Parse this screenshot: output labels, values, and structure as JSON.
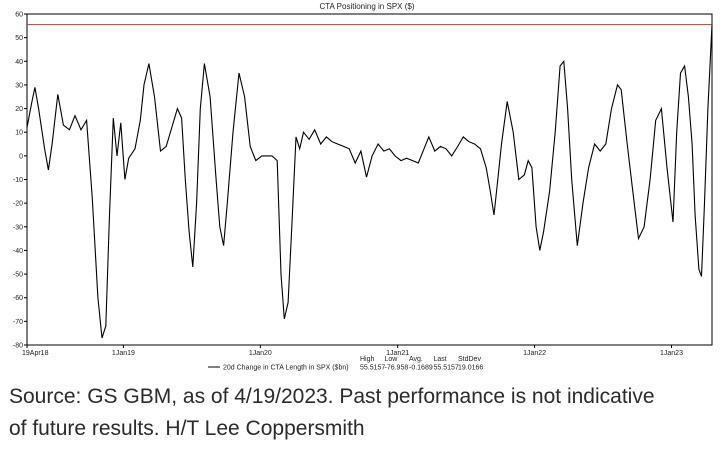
{
  "chart_data": {
    "type": "line",
    "title": "CTA Positioning in SPX ($)",
    "ylim": [
      -80,
      60
    ],
    "yticks": [
      60,
      50,
      40,
      30,
      20,
      10,
      0,
      -10,
      -20,
      -30,
      -40,
      -50,
      -60,
      -70,
      -80
    ],
    "xlim": [
      "2018-04-19",
      "2023-04-19"
    ],
    "xticks": [
      {
        "label": "19Apr18",
        "date": "2018-04-19"
      },
      {
        "label": "1Jan19",
        "date": "2019-01-01"
      },
      {
        "label": "1Jan20",
        "date": "2020-01-01"
      },
      {
        "label": "1Jan21",
        "date": "2021-01-01"
      },
      {
        "label": "1Jan22",
        "date": "2022-01-01"
      },
      {
        "label": "1Jan23",
        "date": "2023-01-01"
      }
    ],
    "reference_line": {
      "y": 55.5157,
      "color": "#c0392b"
    },
    "series": [
      {
        "name": "20d Change in CTA Length in SPX ($bn)",
        "color": "#000000",
        "points": [
          [
            "2018-04-19",
            12
          ],
          [
            "2018-05-01",
            22
          ],
          [
            "2018-05-10",
            29
          ],
          [
            "2018-05-20",
            20
          ],
          [
            "2018-06-05",
            3
          ],
          [
            "2018-06-15",
            -6
          ],
          [
            "2018-06-25",
            5
          ],
          [
            "2018-07-10",
            26
          ],
          [
            "2018-07-25",
            13
          ],
          [
            "2018-08-10",
            11
          ],
          [
            "2018-08-25",
            17
          ],
          [
            "2018-09-10",
            11
          ],
          [
            "2018-09-25",
            15
          ],
          [
            "2018-10-10",
            -18
          ],
          [
            "2018-10-25",
            -60
          ],
          [
            "2018-11-05",
            -77
          ],
          [
            "2018-11-15",
            -72
          ],
          [
            "2018-11-25",
            -25
          ],
          [
            "2018-12-05",
            16
          ],
          [
            "2018-12-15",
            0
          ],
          [
            "2018-12-25",
            14
          ],
          [
            "2019-01-05",
            -10
          ],
          [
            "2019-01-15",
            -1
          ],
          [
            "2019-02-01",
            3
          ],
          [
            "2019-02-15",
            15
          ],
          [
            "2019-02-25",
            30
          ],
          [
            "2019-03-10",
            39
          ],
          [
            "2019-03-25",
            25
          ],
          [
            "2019-04-10",
            2
          ],
          [
            "2019-04-25",
            4
          ],
          [
            "2019-05-10",
            12
          ],
          [
            "2019-05-25",
            20
          ],
          [
            "2019-06-05",
            16
          ],
          [
            "2019-06-15",
            -10
          ],
          [
            "2019-06-25",
            -32
          ],
          [
            "2019-07-05",
            -47
          ],
          [
            "2019-07-15",
            -20
          ],
          [
            "2019-07-25",
            20
          ],
          [
            "2019-08-05",
            39
          ],
          [
            "2019-08-20",
            25
          ],
          [
            "2019-09-05",
            -10
          ],
          [
            "2019-09-15",
            -30
          ],
          [
            "2019-09-25",
            -38
          ],
          [
            "2019-10-05",
            -20
          ],
          [
            "2019-10-20",
            10
          ],
          [
            "2019-11-05",
            35
          ],
          [
            "2019-11-20",
            25
          ],
          [
            "2019-12-05",
            4
          ],
          [
            "2019-12-20",
            -2
          ],
          [
            "2020-01-05",
            0
          ],
          [
            "2020-01-20",
            0
          ],
          [
            "2020-02-01",
            0
          ],
          [
            "2020-02-15",
            -2
          ],
          [
            "2020-02-25",
            -50
          ],
          [
            "2020-03-05",
            -69
          ],
          [
            "2020-03-15",
            -62
          ],
          [
            "2020-03-25",
            -30
          ],
          [
            "2020-04-05",
            8
          ],
          [
            "2020-04-15",
            3
          ],
          [
            "2020-04-25",
            10
          ],
          [
            "2020-05-10",
            7
          ],
          [
            "2020-05-25",
            11
          ],
          [
            "2020-06-10",
            5
          ],
          [
            "2020-06-25",
            8
          ],
          [
            "2020-07-10",
            6
          ],
          [
            "2020-07-25",
            5
          ],
          [
            "2020-08-10",
            4
          ],
          [
            "2020-08-25",
            3
          ],
          [
            "2020-09-10",
            -3
          ],
          [
            "2020-09-25",
            2
          ],
          [
            "2020-10-10",
            -9
          ],
          [
            "2020-10-25",
            0
          ],
          [
            "2020-11-10",
            5
          ],
          [
            "2020-11-25",
            2
          ],
          [
            "2020-12-10",
            3
          ],
          [
            "2020-12-25",
            0
          ],
          [
            "2021-01-10",
            -2
          ],
          [
            "2021-01-25",
            -1
          ],
          [
            "2021-02-10",
            -2
          ],
          [
            "2021-02-25",
            -3
          ],
          [
            "2021-03-10",
            2
          ],
          [
            "2021-03-25",
            8
          ],
          [
            "2021-04-10",
            2
          ],
          [
            "2021-04-25",
            4
          ],
          [
            "2021-05-10",
            3
          ],
          [
            "2021-05-25",
            0
          ],
          [
            "2021-06-10",
            4
          ],
          [
            "2021-06-25",
            8
          ],
          [
            "2021-07-10",
            6
          ],
          [
            "2021-07-25",
            5
          ],
          [
            "2021-08-10",
            3
          ],
          [
            "2021-08-25",
            -5
          ],
          [
            "2021-09-05",
            -15
          ],
          [
            "2021-09-15",
            -25
          ],
          [
            "2021-09-25",
            -10
          ],
          [
            "2021-10-05",
            5
          ],
          [
            "2021-10-20",
            23
          ],
          [
            "2021-11-05",
            10
          ],
          [
            "2021-11-20",
            -10
          ],
          [
            "2021-12-05",
            -8
          ],
          [
            "2021-12-15",
            -2
          ],
          [
            "2021-12-25",
            -5
          ],
          [
            "2022-01-05",
            -30
          ],
          [
            "2022-01-15",
            -40
          ],
          [
            "2022-01-25",
            -32
          ],
          [
            "2022-02-10",
            -15
          ],
          [
            "2022-02-25",
            10
          ],
          [
            "2022-03-10",
            38
          ],
          [
            "2022-03-20",
            40
          ],
          [
            "2022-03-30",
            20
          ],
          [
            "2022-04-10",
            -10
          ],
          [
            "2022-04-25",
            -38
          ],
          [
            "2022-05-10",
            -20
          ],
          [
            "2022-05-25",
            -5
          ],
          [
            "2022-06-10",
            5
          ],
          [
            "2022-06-25",
            2
          ],
          [
            "2022-07-10",
            5
          ],
          [
            "2022-07-25",
            20
          ],
          [
            "2022-08-10",
            30
          ],
          [
            "2022-08-20",
            28
          ],
          [
            "2022-09-05",
            5
          ],
          [
            "2022-09-20",
            -15
          ],
          [
            "2022-10-05",
            -35
          ],
          [
            "2022-10-20",
            -30
          ],
          [
            "2022-11-05",
            -10
          ],
          [
            "2022-11-20",
            15
          ],
          [
            "2022-12-05",
            20
          ],
          [
            "2022-12-20",
            -5
          ],
          [
            "2023-01-05",
            -28
          ],
          [
            "2023-01-15",
            10
          ],
          [
            "2023-01-25",
            35
          ],
          [
            "2023-02-05",
            38
          ],
          [
            "2023-02-15",
            25
          ],
          [
            "2023-02-25",
            5
          ],
          [
            "2023-03-05",
            -25
          ],
          [
            "2023-03-15",
            -48
          ],
          [
            "2023-03-22",
            -51
          ],
          [
            "2023-03-30",
            -20
          ],
          [
            "2023-04-08",
            20
          ],
          [
            "2023-04-19",
            55.5
          ]
        ]
      }
    ],
    "legend": {
      "placement": "bottom",
      "stats": [
        {
          "label": "High",
          "value": "55.5157"
        },
        {
          "label": "Low",
          "value": "-76.958"
        },
        {
          "label": "Avg.",
          "value": "-0.1689"
        },
        {
          "label": "Last",
          "value": "55.5157"
        },
        {
          "label": "StdDev",
          "value": "19.0166"
        }
      ]
    }
  },
  "caption": {
    "line1": "Source: GS GBM, as of 4/19/2023. Past performance is not indicative",
    "line2": "of future results. H/T Lee Coppersmith"
  }
}
